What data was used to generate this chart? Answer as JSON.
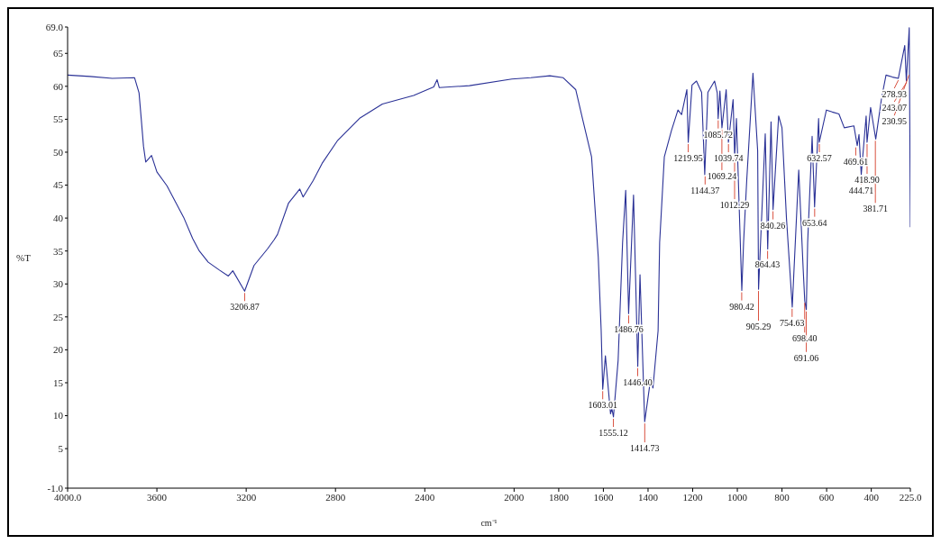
{
  "chart_data": {
    "type": "line",
    "xlabel": "cm⁻¹",
    "ylabel": "%T",
    "x": [
      4000,
      3900,
      3800,
      3700,
      3680,
      3670,
      3660,
      3650,
      3624,
      3600,
      3555,
      3480,
      3440,
      3410,
      3370,
      3320,
      3280,
      3260,
      3207,
      3165,
      3105,
      3075,
      3060,
      3010,
      2960,
      2945,
      2900,
      2860,
      2790,
      2690,
      2590,
      2450,
      2360,
      2345,
      2335,
      2200,
      2010,
      1925,
      1840,
      1780,
      1724,
      1693,
      1653,
      1623,
      1610,
      1603,
      1591,
      1568,
      1562,
      1555,
      1534,
      1514,
      1500,
      1487,
      1465,
      1446,
      1436,
      1415,
      1388,
      1378,
      1355,
      1348,
      1327,
      1295,
      1266,
      1250,
      1226,
      1220,
      1203,
      1183,
      1160,
      1146,
      1132,
      1102,
      1090,
      1086,
      1078,
      1069,
      1050,
      1040,
      1019,
      1012,
      1004,
      980,
      972,
      958,
      930,
      909,
      905,
      875,
      864,
      849,
      840,
      815,
      800,
      780,
      754,
      725,
      705,
      698,
      691,
      685,
      665,
      654,
      636,
      633,
      601,
      575,
      545,
      521,
      478,
      463,
      455,
      445,
      423,
      419,
      403,
      380,
      354,
      334,
      305,
      279,
      250,
      243,
      230,
      225
    ],
    "series": [
      {
        "color": "#2a3196",
        "values": [
          61.7,
          61.5,
          61.2,
          61.3,
          59,
          55,
          50.9,
          48.5,
          49.5,
          47,
          44.9,
          40.1,
          36.9,
          35,
          33.3,
          32.1,
          31.2,
          32,
          28.9,
          32.8,
          35.3,
          36.7,
          37.5,
          42.3,
          44.4,
          43.2,
          45.7,
          48.3,
          51.8,
          55.2,
          57.3,
          58.6,
          59.9,
          61,
          59.8,
          60.1,
          61.1,
          61.3,
          61.6,
          61.3,
          59.5,
          55,
          49.3,
          34.1,
          23,
          14,
          19.1,
          10.3,
          11.1,
          9.8,
          18.4,
          36.3,
          44.2,
          25.5,
          43.5,
          17.5,
          31.4,
          9.1,
          15.7,
          14.2,
          22.9,
          36.3,
          49.3,
          53.3,
          56.4,
          55.7,
          59.5,
          51.5,
          60.2,
          60.8,
          59.1,
          46.6,
          59.1,
          60.8,
          59,
          55.1,
          59.3,
          53.7,
          59.5,
          51.5,
          58,
          49.3,
          55.1,
          29,
          36.3,
          45.7,
          62,
          50.2,
          29.2,
          52.8,
          35.3,
          54.6,
          41.3,
          55.5,
          53.7,
          40,
          26.5,
          47.3,
          32.2,
          27.4,
          26.1,
          36.3,
          52.4,
          41.7,
          55.1,
          51.5,
          56.4,
          56.1,
          55.8,
          53.7,
          54,
          51,
          52.7,
          46.6,
          55.5,
          51.5,
          56.8,
          52,
          58.2,
          61.7,
          61.4,
          61.2,
          66.2,
          60.8,
          68.9,
          38.6
        ]
      }
    ],
    "xlim": [
      4000,
      225
    ],
    "xticks": [
      {
        "value": 4000,
        "label": "4000.0"
      },
      3600,
      3200,
      2800,
      2400,
      2000,
      1800,
      1600,
      1400,
      1200,
      1000,
      800,
      600,
      400,
      {
        "value": 225,
        "label": "225.0"
      }
    ],
    "ylim": [
      -1,
      69
    ],
    "yticks": [
      {
        "value": -1,
        "label": "-1.0"
      },
      5,
      10,
      15,
      20,
      25,
      30,
      35,
      40,
      45,
      50,
      55,
      60,
      65,
      {
        "value": 69,
        "label": "69.0"
      }
    ],
    "grid": false,
    "annotations": [
      {
        "text": "3206.87",
        "x": 3206.87,
        "y": 28.9
      },
      {
        "text": "1603.01",
        "x": 1603.01,
        "y": 14
      },
      {
        "text": "1555.12",
        "x": 1555.12,
        "y": 9.8
      },
      {
        "text": "1486.76",
        "x": 1486.76,
        "y": 25.5
      },
      {
        "text": "1446.40",
        "x": 1446.4,
        "y": 17.5
      },
      {
        "text": "1414.73",
        "x": 1414.73,
        "y": 9.1
      },
      {
        "text": "1219.95",
        "x": 1219.95,
        "y": 51.5
      },
      {
        "text": "1144.37",
        "x": 1144.37,
        "y": 46.6
      },
      {
        "text": "1085.72",
        "x": 1085.72,
        "y": 55.1
      },
      {
        "text": "1069.24",
        "x": 1069.24,
        "y": 53.7
      },
      {
        "text": "1039.74",
        "x": 1039.74,
        "y": 51.5
      },
      {
        "text": "1012.29",
        "x": 1012.29,
        "y": 49.3
      },
      {
        "text": "980.42",
        "x": 980.42,
        "y": 29
      },
      {
        "text": "905.29",
        "x": 905.29,
        "y": 29.2
      },
      {
        "text": "864.43",
        "x": 864.43,
        "y": 35.3
      },
      {
        "text": "840.26",
        "x": 840.26,
        "y": 41.3
      },
      {
        "text": "754.63",
        "x": 754.63,
        "y": 26.5
      },
      {
        "text": "698.40",
        "x": 698.4,
        "y": 27.4
      },
      {
        "text": "691.06",
        "x": 691.06,
        "y": 26.1
      },
      {
        "text": "653.64",
        "x": 653.64,
        "y": 41.7
      },
      {
        "text": "632.57",
        "x": 632.57,
        "y": 51.5
      },
      {
        "text": "469.61",
        "x": 469.61,
        "y": 51
      },
      {
        "text": "444.71",
        "x": 444.71,
        "y": 46.6
      },
      {
        "text": "418.90",
        "x": 418.9,
        "y": 51.5
      },
      {
        "text": "381.71",
        "x": 381.71,
        "y": 52
      },
      {
        "text": "278.93",
        "x": 278.93,
        "y": 61.2
      },
      {
        "text": "243.07",
        "x": 243.07,
        "y": 60.8
      },
      {
        "text": "230.95",
        "x": 230.95,
        "y": 62
      }
    ]
  }
}
